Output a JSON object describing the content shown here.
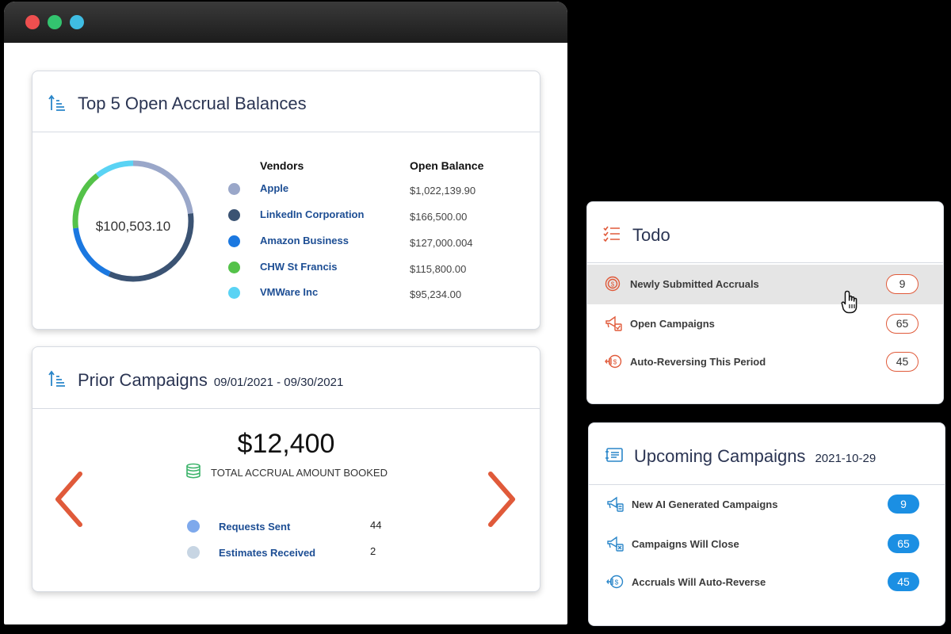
{
  "top5": {
    "title": "Top 5 Open Accrual Balances",
    "center_value": "$100,503.10",
    "col_vendors": "Vendors",
    "col_balance": "Open Balance",
    "vendors": [
      {
        "name": "Apple",
        "balance": "$1,022,139.90",
        "color": "#9aa7c9"
      },
      {
        "name": "LinkedIn Corporation",
        "balance": "$166,500.00",
        "color": "#3b5373"
      },
      {
        "name": "Amazon Business",
        "balance": "$127,000.004",
        "color": "#1b78e0"
      },
      {
        "name": "CHW St Francis",
        "balance": "$115,800.00",
        "color": "#54c249"
      },
      {
        "name": "VMWare Inc",
        "balance": "$95,234.00",
        "color": "#5ad3f4"
      }
    ]
  },
  "prior": {
    "title": "Prior Campaigns",
    "date_range": "09/01/2021 - 09/30/2021",
    "amount": "$12,400",
    "amount_label": "TOTAL ACCRUAL AMOUNT BOOKED",
    "stats": [
      {
        "label": "Requests Sent",
        "value": "44",
        "color": "#7ea9ec"
      },
      {
        "label": "Estimates Received",
        "value": "2",
        "color": "#c7d5e3"
      }
    ]
  },
  "todo": {
    "title": "Todo",
    "items": [
      {
        "label": "Newly Submitted Accruals",
        "count": "9",
        "icon": "target-dollar-icon"
      },
      {
        "label": "Open Campaigns",
        "count": "65",
        "icon": "megaphone-check-icon"
      },
      {
        "label": "Auto-Reversing This Period",
        "count": "45",
        "icon": "reverse-dollar-icon"
      }
    ]
  },
  "upcoming": {
    "title": "Upcoming Campaigns",
    "date": "2021-10-29",
    "items": [
      {
        "label": "New AI Generated Campaigns",
        "count": "9",
        "icon": "megaphone-doc-icon"
      },
      {
        "label": "Campaigns Will Close",
        "count": "65",
        "icon": "megaphone-close-icon"
      },
      {
        "label": "Accruals Will Auto-Reverse",
        "count": "45",
        "icon": "reverse-dollar-icon"
      }
    ]
  },
  "colors": {
    "accent_orange": "#e05a3a",
    "accent_blue": "#1b8fe3",
    "link_blue": "#1d4e94"
  }
}
